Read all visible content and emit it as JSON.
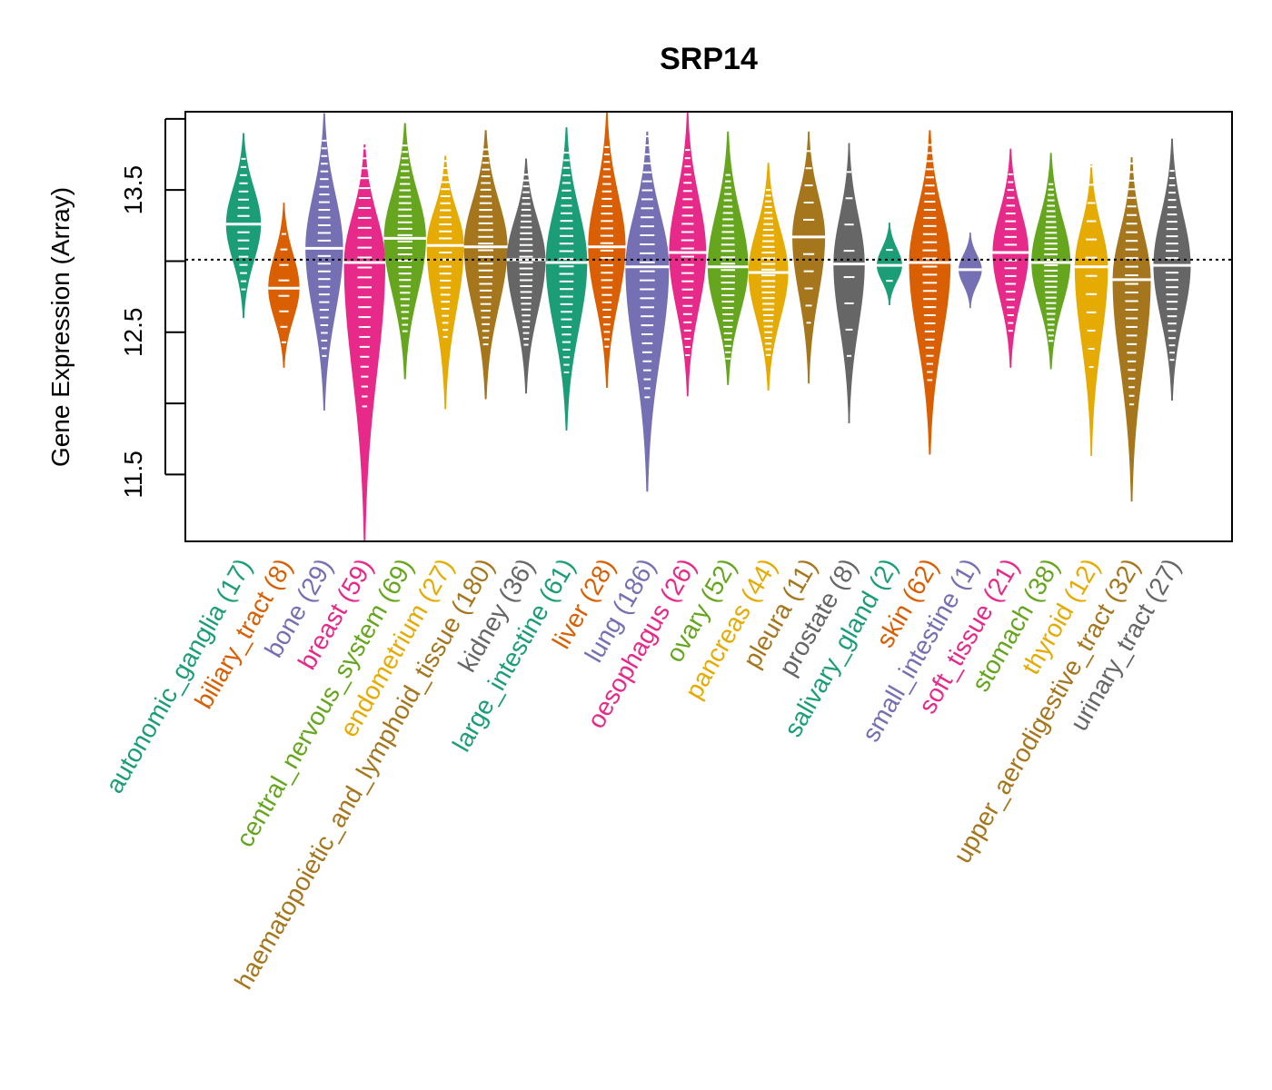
{
  "chart_data": {
    "type": "violin",
    "title": "SRP14",
    "xlabel": "",
    "ylabel": "Gene Expression (Array)",
    "ylim": [
      11.03,
      14.05
    ],
    "yticks": [
      11.5,
      12.0,
      12.5,
      13.0,
      13.5,
      14.0
    ],
    "ytick_labels": [
      "11.5",
      "",
      "12.5",
      "",
      "13.5",
      ""
    ],
    "reference_line": 13.01,
    "grid": false,
    "legend": "none",
    "palette": [
      "#1B9E77",
      "#D95F02",
      "#7570B3",
      "#E7298A",
      "#66A61E",
      "#E6AB02",
      "#A6761D",
      "#666666"
    ],
    "groups": [
      {
        "name": "autonomic_ganglia",
        "n": 17,
        "median": 13.26,
        "min": 12.6,
        "max": 13.9,
        "color": "#1B9E77"
      },
      {
        "name": "biliary_tract",
        "n": 8,
        "median": 12.81,
        "min": 12.25,
        "max": 13.41,
        "color": "#D95F02"
      },
      {
        "name": "bone",
        "n": 29,
        "median": 13.09,
        "min": 11.95,
        "max": 14.04,
        "color": "#7570B3"
      },
      {
        "name": "breast",
        "n": 59,
        "median": 12.99,
        "min": 11.03,
        "max": 13.82,
        "color": "#E7298A"
      },
      {
        "name": "central_nervous_system",
        "n": 69,
        "median": 13.16,
        "min": 12.17,
        "max": 13.97,
        "color": "#66A61E"
      },
      {
        "name": "endometrium",
        "n": 27,
        "median": 13.11,
        "min": 11.96,
        "max": 13.74,
        "color": "#E6AB02"
      },
      {
        "name": "haematopoietic_and_lymphoid_tissue",
        "n": 180,
        "median": 13.1,
        "min": 12.03,
        "max": 13.92,
        "color": "#A6761D"
      },
      {
        "name": "kidney",
        "n": 36,
        "median": 13.01,
        "min": 12.07,
        "max": 13.72,
        "color": "#666666"
      },
      {
        "name": "large_intestine",
        "n": 61,
        "median": 12.99,
        "min": 11.81,
        "max": 13.94,
        "color": "#1B9E77"
      },
      {
        "name": "liver",
        "n": 28,
        "median": 13.1,
        "min": 12.11,
        "max": 14.05,
        "color": "#D95F02"
      },
      {
        "name": "lung",
        "n": 186,
        "median": 12.96,
        "min": 11.38,
        "max": 13.91,
        "color": "#7570B3"
      },
      {
        "name": "oesophagus",
        "n": 26,
        "median": 13.06,
        "min": 12.05,
        "max": 14.05,
        "color": "#E7298A"
      },
      {
        "name": "ovary",
        "n": 52,
        "median": 12.96,
        "min": 12.13,
        "max": 13.91,
        "color": "#66A61E"
      },
      {
        "name": "pancreas",
        "n": 44,
        "median": 12.92,
        "min": 12.09,
        "max": 13.69,
        "color": "#E6AB02"
      },
      {
        "name": "pleura",
        "n": 11,
        "median": 13.17,
        "min": 12.14,
        "max": 13.91,
        "color": "#A6761D"
      },
      {
        "name": "prostate",
        "n": 8,
        "median": 12.98,
        "min": 11.86,
        "max": 13.83,
        "color": "#666666"
      },
      {
        "name": "salivary_gland",
        "n": 2,
        "median": 12.97,
        "min": 12.69,
        "max": 13.27,
        "color": "#1B9E77"
      },
      {
        "name": "skin",
        "n": 62,
        "median": 12.99,
        "min": 11.64,
        "max": 13.92,
        "color": "#D95F02"
      },
      {
        "name": "small_intestine",
        "n": 1,
        "median": 12.94,
        "min": 12.67,
        "max": 13.2,
        "color": "#7570B3"
      },
      {
        "name": "soft_tissue",
        "n": 21,
        "median": 13.06,
        "min": 12.25,
        "max": 13.79,
        "color": "#E7298A"
      },
      {
        "name": "stomach",
        "n": 38,
        "median": 12.99,
        "min": 12.24,
        "max": 13.76,
        "color": "#66A61E"
      },
      {
        "name": "thyroid",
        "n": 12,
        "median": 12.96,
        "min": 11.63,
        "max": 13.68,
        "color": "#E6AB02"
      },
      {
        "name": "upper_aerodigestive_tract",
        "n": 32,
        "median": 12.87,
        "min": 11.31,
        "max": 13.73,
        "color": "#A6761D"
      },
      {
        "name": "urinary_tract",
        "n": 27,
        "median": 12.97,
        "min": 12.02,
        "max": 13.86,
        "color": "#666666"
      }
    ]
  }
}
